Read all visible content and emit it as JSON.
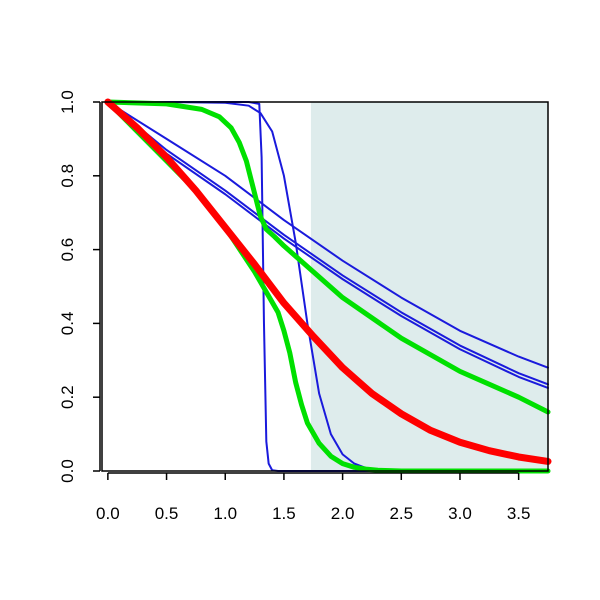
{
  "chart_data": {
    "type": "line",
    "xlim": [
      -0.05,
      3.75
    ],
    "ylim": [
      0.0,
      1.0
    ],
    "x_ticks": [
      "0.0",
      "0.5",
      "1.0",
      "1.5",
      "2.0",
      "2.5",
      "3.0",
      "3.5"
    ],
    "x_tick_values": [
      0.0,
      0.5,
      1.0,
      1.5,
      2.0,
      2.5,
      3.0,
      3.5
    ],
    "y_ticks": [
      "0.0",
      "0.2",
      "0.4",
      "0.6",
      "0.8",
      "1.0"
    ],
    "y_tick_values": [
      0.0,
      0.2,
      0.4,
      0.6,
      0.8,
      1.0
    ],
    "shaded_region": {
      "x_start": 1.73,
      "x_end": 3.75,
      "color": "#deecec"
    },
    "grid": false,
    "series": [
      {
        "color": "#1a1adc",
        "weight": "thin",
        "x": [
          0.0,
          0.5,
          1.0,
          1.5,
          2.0,
          2.5,
          3.0,
          3.5,
          3.75
        ],
        "y": [
          1.0,
          0.9,
          0.8,
          0.68,
          0.57,
          0.47,
          0.38,
          0.31,
          0.28
        ]
      },
      {
        "color": "#1a1adc",
        "weight": "thin",
        "x": [
          0.0,
          0.5,
          1.0,
          1.5,
          2.0,
          2.5,
          3.0,
          3.5,
          3.75
        ],
        "y": [
          1.0,
          0.87,
          0.76,
          0.64,
          0.53,
          0.43,
          0.34,
          0.265,
          0.235
        ]
      },
      {
        "color": "#1a1adc",
        "weight": "thin",
        "x": [
          0.0,
          0.5,
          1.0,
          1.5,
          2.0,
          2.5,
          3.0,
          3.5,
          3.75
        ],
        "y": [
          1.0,
          0.86,
          0.75,
          0.63,
          0.52,
          0.42,
          0.33,
          0.255,
          0.225
        ]
      },
      {
        "color": "#1a1adc",
        "weight": "thin",
        "x": [
          0.0,
          0.5,
          1.0,
          1.2,
          1.29,
          1.31,
          1.33,
          1.35,
          1.37,
          1.4,
          1.45,
          1.5,
          3.75
        ],
        "y": [
          1.0,
          1.0,
          1.0,
          1.0,
          0.995,
          0.85,
          0.4,
          0.08,
          0.02,
          0.002,
          0.0,
          0.0,
          0.0
        ]
      },
      {
        "color": "#1a1adc",
        "weight": "thin",
        "x": [
          0.0,
          0.5,
          1.0,
          1.2,
          1.3,
          1.4,
          1.5,
          1.6,
          1.7,
          1.8,
          1.9,
          2.0,
          2.1,
          2.2,
          2.4,
          2.6,
          3.75
        ],
        "y": [
          1.0,
          1.0,
          0.998,
          0.99,
          0.97,
          0.92,
          0.8,
          0.62,
          0.4,
          0.21,
          0.1,
          0.045,
          0.02,
          0.008,
          0.002,
          0.0,
          0.0
        ]
      },
      {
        "color": "#00e000",
        "weight": "medium",
        "x": [
          0.0,
          0.5,
          0.8,
          0.95,
          1.05,
          1.12,
          1.18,
          1.22,
          1.26,
          1.3,
          1.35,
          1.42,
          1.5,
          1.75,
          2.0,
          2.5,
          3.0,
          3.5,
          3.75
        ],
        "y": [
          1.0,
          0.995,
          0.98,
          0.96,
          0.93,
          0.89,
          0.84,
          0.79,
          0.74,
          0.69,
          0.655,
          0.635,
          0.61,
          0.54,
          0.47,
          0.36,
          0.27,
          0.2,
          0.16
        ]
      },
      {
        "color": "#00e000",
        "weight": "medium",
        "x": [
          0.0,
          0.25,
          0.5,
          0.75,
          0.9,
          1.0,
          1.25,
          1.45,
          1.5,
          1.55,
          1.6,
          1.65,
          1.7,
          1.8,
          1.9,
          2.0,
          2.1,
          2.2,
          2.3,
          2.4,
          2.5,
          3.0,
          3.75
        ],
        "y": [
          1.0,
          0.92,
          0.84,
          0.76,
          0.7,
          0.66,
          0.54,
          0.43,
          0.38,
          0.32,
          0.24,
          0.18,
          0.13,
          0.075,
          0.04,
          0.02,
          0.01,
          0.005,
          0.002,
          0.001,
          0.0,
          0.0,
          0.0
        ]
      },
      {
        "color": "#ff0000",
        "weight": "thick",
        "x": [
          0.0,
          0.25,
          0.5,
          0.75,
          1.0,
          1.25,
          1.5,
          1.75,
          2.0,
          2.25,
          2.5,
          2.75,
          3.0,
          3.25,
          3.5,
          3.75
        ],
        "y": [
          1.0,
          0.93,
          0.85,
          0.76,
          0.66,
          0.56,
          0.455,
          0.365,
          0.28,
          0.21,
          0.155,
          0.11,
          0.078,
          0.055,
          0.038,
          0.026
        ]
      }
    ]
  }
}
